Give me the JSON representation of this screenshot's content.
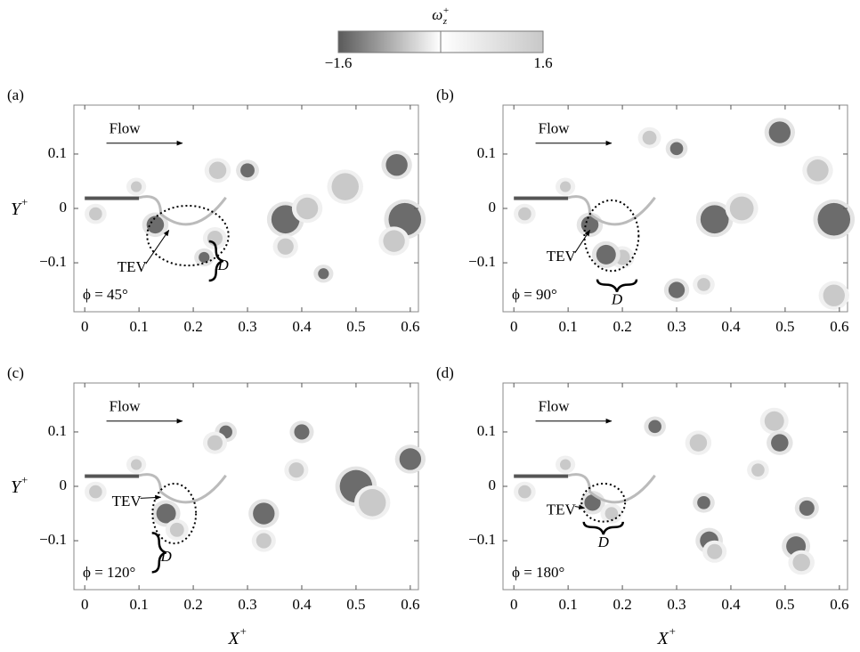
{
  "colorbar": {
    "title": "ω",
    "title_sub": "z",
    "title_sup": "+",
    "range": [
      -1.6,
      1.6
    ],
    "ticks": [
      {
        "value": -1.6,
        "label": "−1.6"
      },
      1.6
    ]
  },
  "axes": {
    "xlabel": "X",
    "xlabel_sup": "+",
    "ylabel": "Y",
    "ylabel_sup": "+",
    "xlim": [
      -0.02,
      0.615
    ],
    "ylim": [
      -0.19,
      0.19
    ],
    "xticks": [
      0,
      0.1,
      0.2,
      0.3,
      0.4,
      0.5,
      0.6
    ],
    "yticks": [
      {
        "value": -0.1,
        "label": "−0.1"
      },
      0,
      0.1
    ]
  },
  "panels": [
    {
      "label": "(a)",
      "flow": "Flow",
      "tev": "TEV",
      "brace": "D",
      "phase": "ϕ = 45°"
    },
    {
      "label": "(b)",
      "flow": "Flow",
      "tev": "TEV",
      "brace": "D",
      "phase": "ϕ = 90°"
    },
    {
      "label": "(c)",
      "flow": "Flow",
      "tev": "TEV",
      "brace": "D",
      "phase": "ϕ = 120°"
    },
    {
      "label": "(d)",
      "flow": "Flow",
      "tev": "TEV",
      "brace": "D",
      "phase": "ϕ = 180°"
    }
  ]
}
